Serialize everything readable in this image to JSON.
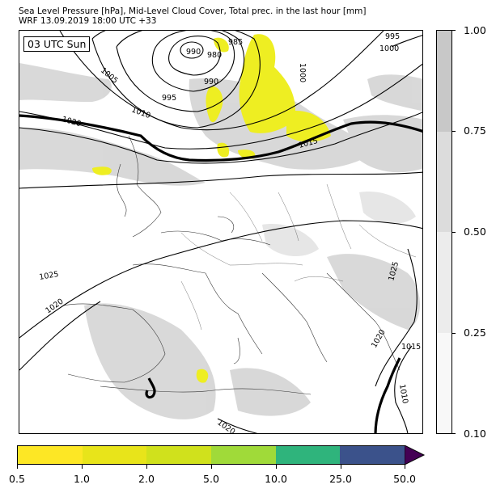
{
  "header": {
    "line1": "Sea Level Pressure [hPa], Mid-Level Cloud Cover, Total prec. in the last hour [mm]",
    "line2": "WRF 13.09.2019 18:00 UTC +33"
  },
  "map": {
    "time_label": "03 UTC Sun",
    "isobar_labels": [
      "990",
      "985",
      "980",
      "1005",
      "990",
      "995",
      "1000",
      "1000",
      "995",
      "1010",
      "1020",
      "1015",
      "1025",
      "1020",
      "1020",
      "1015",
      "1020",
      "1010",
      "1025"
    ]
  },
  "cloud_colorbar": {
    "labels": [
      "1.00",
      "0.75",
      "0.50",
      "0.25",
      "0.10"
    ],
    "colors": [
      "#c8c8c8",
      "#dcdcdc",
      "#ececec",
      "#f8f8f8"
    ]
  },
  "precip_colorbar": {
    "labels": [
      "0.5",
      "1.0",
      "2.0",
      "5.0",
      "10.0",
      "25.0",
      "50.0"
    ],
    "colors": [
      "#fde725",
      "#e8e41a",
      "#d0e11c",
      "#a0da39",
      "#2fb47c",
      "#3b528b",
      "#440154"
    ]
  }
}
